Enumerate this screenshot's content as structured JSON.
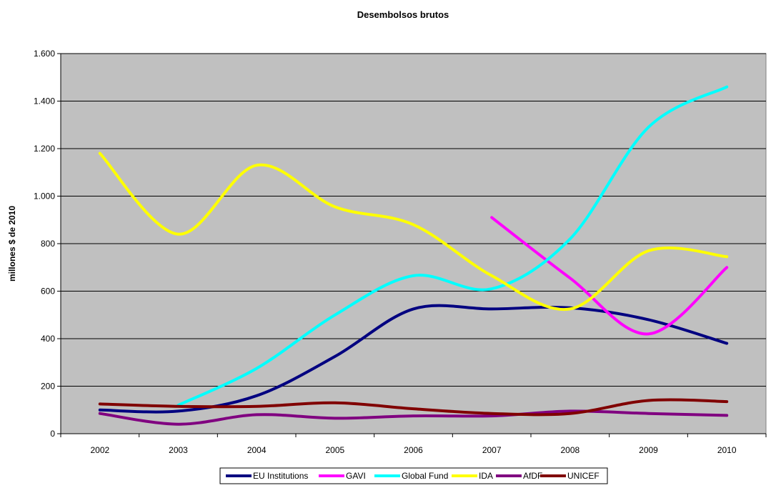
{
  "chart_data": {
    "type": "line",
    "title": "Desembolsos brutos",
    "xlabel": "",
    "ylabel": "millones $ de 2010",
    "categories": [
      "2002",
      "2003",
      "2004",
      "2005",
      "2006",
      "2007",
      "2008",
      "2009",
      "2010"
    ],
    "ylim": [
      0,
      1600
    ],
    "yticks": [
      0,
      200,
      400,
      600,
      800,
      1000,
      1200,
      1400,
      1600
    ],
    "ytick_labels": [
      "0",
      "200",
      "400",
      "600",
      "800",
      "1.000",
      "1.200",
      "1.400",
      "1.600"
    ],
    "grid": true,
    "smooth": true,
    "legend_position": "bottom",
    "plot_background": "#c0c0c0",
    "series": [
      {
        "name": "EU Institutions",
        "color": "#000080",
        "values": [
          100,
          95,
          160,
          325,
          525,
          525,
          530,
          480,
          380
        ]
      },
      {
        "name": "GAVI",
        "color": "#ff00ff",
        "values": [
          null,
          null,
          null,
          null,
          null,
          910,
          655,
          420,
          700
        ]
      },
      {
        "name": "Global Fund",
        "color": "#00ffff",
        "values": [
          null,
          120,
          275,
          500,
          665,
          610,
          820,
          1290,
          1460
        ]
      },
      {
        "name": "IDA",
        "color": "#ffff00",
        "values": [
          1180,
          840,
          1130,
          955,
          880,
          665,
          525,
          770,
          745
        ]
      },
      {
        "name": "AfDF",
        "color": "#800080",
        "values": [
          85,
          40,
          80,
          65,
          75,
          75,
          95,
          85,
          77
        ]
      },
      {
        "name": "UNICEF",
        "color": "#800000",
        "values": [
          125,
          115,
          115,
          130,
          105,
          85,
          85,
          140,
          135
        ]
      }
    ]
  }
}
